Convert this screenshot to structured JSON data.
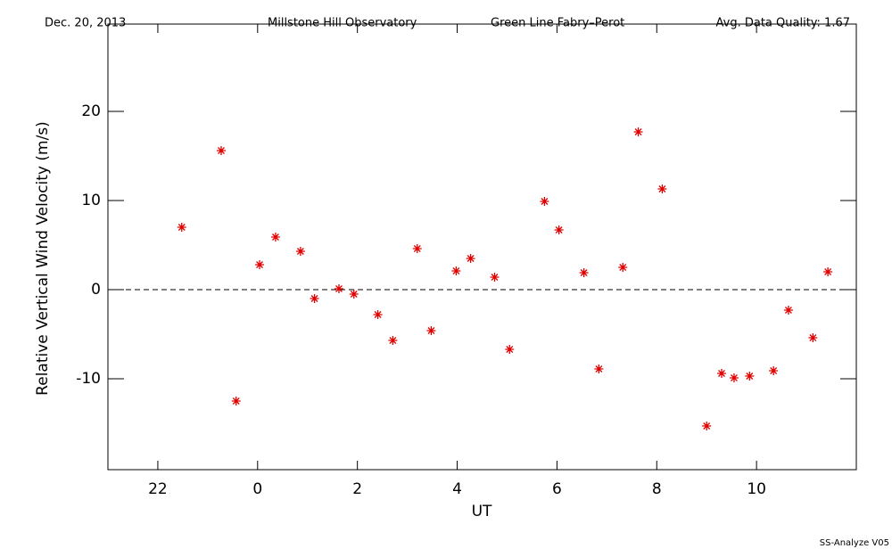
{
  "chart_data": {
    "type": "scatter",
    "header": [
      "Dec. 20, 2013",
      "Millstone Hill Observatory",
      "Green Line Fabry–Perot",
      "Avg. Data Quality: 1.67"
    ],
    "footer": "SS-Analyze V05",
    "x_label": "UT",
    "y_label": "Relative Vertical Wind Velocity (m/s)",
    "xlim": [
      -3,
      12
    ],
    "ylim": [
      -20.2,
      29.8
    ],
    "xticks": [
      {
        "value": -2,
        "label": "22"
      },
      0,
      2,
      4,
      6,
      8,
      10
    ],
    "yticks": [
      -10,
      0,
      10,
      20
    ],
    "zero_line": true,
    "color": "#e00000",
    "x": [
      -1.52,
      -0.73,
      -0.43,
      0.04,
      0.36,
      0.86,
      1.14,
      1.63,
      1.93,
      2.41,
      2.71,
      3.2,
      3.48,
      3.98,
      4.27,
      4.75,
      5.05,
      5.75,
      6.04,
      6.54,
      6.84,
      7.32,
      7.63,
      8.11,
      9.0,
      9.3,
      9.55,
      9.86,
      10.34,
      10.64,
      11.13,
      11.43
    ],
    "values": [
      7.0,
      15.6,
      -12.5,
      2.8,
      5.9,
      4.3,
      -1.0,
      0.1,
      -0.5,
      -2.8,
      -5.7,
      4.6,
      -4.6,
      2.1,
      3.5,
      1.4,
      -6.7,
      9.9,
      6.7,
      1.9,
      -8.9,
      2.5,
      17.7,
      11.3,
      -15.3,
      -9.4,
      -9.9,
      -9.7,
      -9.1,
      -2.3,
      -5.4,
      2.0
    ]
  }
}
